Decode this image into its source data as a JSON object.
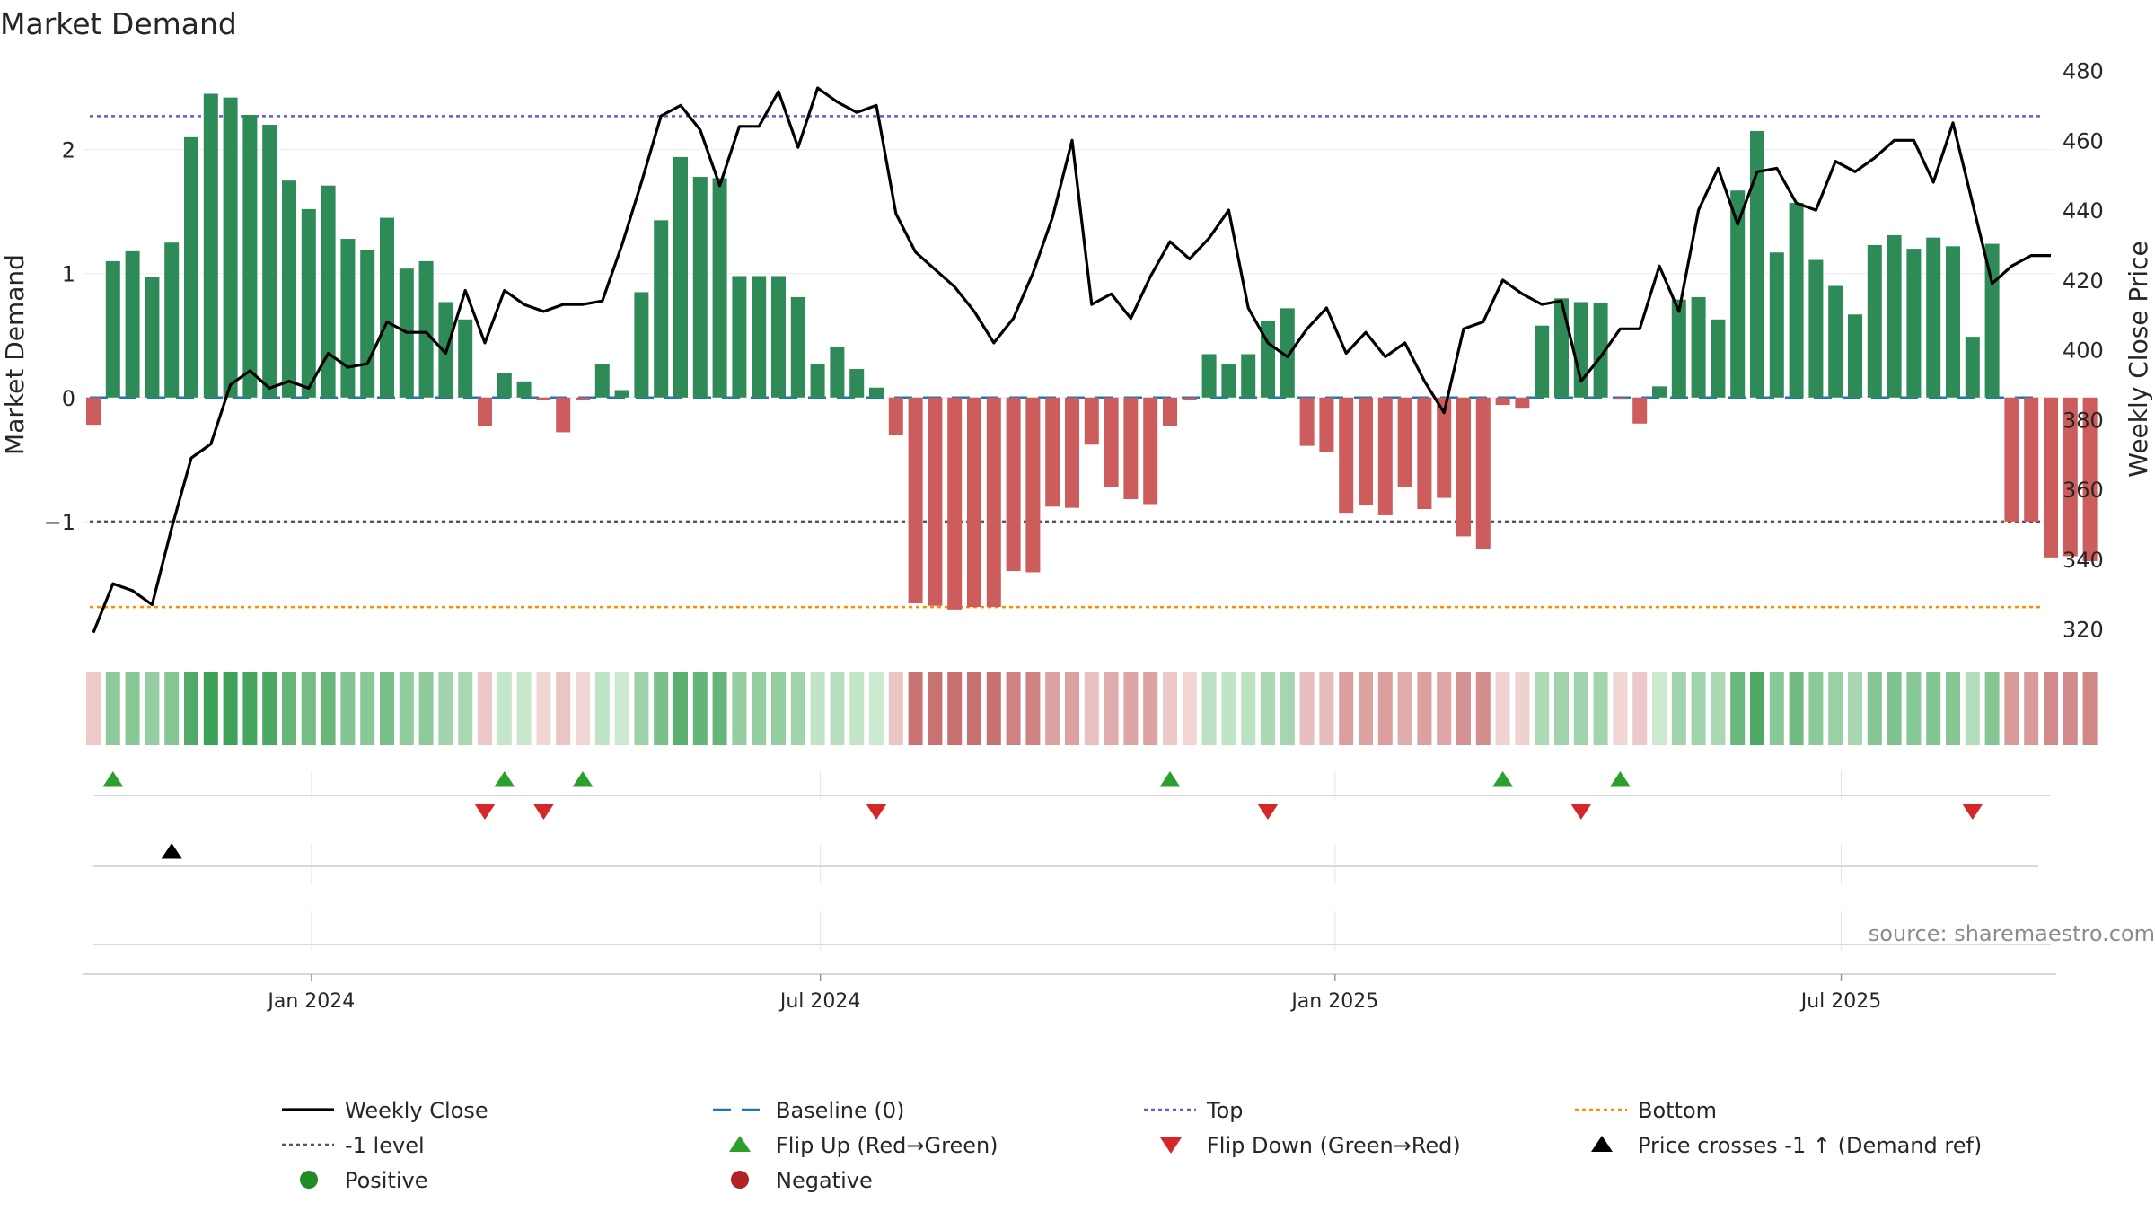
{
  "chart_data": {
    "type": "bar",
    "title": "Market Demand",
    "ylabel_left": "Market Demand",
    "ylabel_right": "Weekly Close Price",
    "source": "source: sharemaestro.com",
    "ylim_left": [
      -1.95,
      2.7
    ],
    "yticks_left": [
      2,
      1,
      0,
      -1
    ],
    "ytick_labels_left": [
      "2",
      "1",
      "0",
      "−1"
    ],
    "ylim_right": [
      317.1,
      482.2
    ],
    "yticks_right": [
      320,
      340,
      360,
      380,
      400,
      420,
      440,
      460,
      480
    ],
    "date_ticks": [
      {
        "label": "Jan 2024",
        "index": 11.14
      },
      {
        "label": "Jul 2024",
        "index": 37.14
      },
      {
        "label": "Jan 2025",
        "index": 63.43
      },
      {
        "label": "Jul 2025",
        "index": 89.29
      }
    ],
    "levels": {
      "top": 2.27,
      "minus_one": -1,
      "bottom": -1.69,
      "baseline": 0
    },
    "demand": [
      -0.22,
      1.1,
      1.18,
      0.97,
      1.25,
      2.1,
      2.45,
      2.42,
      2.28,
      2.2,
      1.75,
      1.52,
      1.71,
      1.28,
      1.19,
      1.45,
      1.04,
      1.1,
      0.77,
      0.63,
      -0.23,
      0.2,
      0.13,
      -0.02,
      -0.28,
      -0.02,
      0.27,
      0.06,
      0.85,
      1.43,
      1.94,
      1.78,
      1.77,
      0.98,
      0.98,
      0.98,
      0.81,
      0.27,
      0.41,
      0.23,
      0.08,
      -0.3,
      -1.66,
      -1.68,
      -1.71,
      -1.69,
      -1.69,
      -1.4,
      -1.41,
      -0.88,
      -0.89,
      -0.38,
      -0.72,
      -0.82,
      -0.86,
      -0.23,
      -0.02,
      0.35,
      0.27,
      0.35,
      0.62,
      0.72,
      -0.39,
      -0.44,
      -0.93,
      -0.87,
      -0.95,
      -0.72,
      -0.9,
      -0.81,
      -1.12,
      -1.22,
      -0.06,
      -0.09,
      0.58,
      0.8,
      0.77,
      0.76,
      -0.01,
      -0.21,
      0.09,
      0.79,
      0.81,
      0.63,
      1.67,
      2.15,
      1.17,
      1.57,
      1.11,
      0.9,
      0.67,
      1.23,
      1.31,
      1.2,
      1.29,
      1.22,
      0.49,
      1.24,
      -1,
      -1,
      -1.29,
      -1.28,
      -1.32
    ],
    "close": [
      319,
      333,
      331,
      327,
      349,
      369,
      373,
      390,
      394,
      389,
      391,
      389,
      399,
      395,
      396,
      408,
      405,
      405,
      399,
      417,
      402,
      417,
      413,
      411,
      413,
      413,
      414,
      430,
      448,
      467,
      470,
      463,
      447,
      464,
      464,
      474,
      458,
      475,
      471,
      468,
      470,
      439,
      428,
      423,
      418,
      411,
      402,
      409,
      422,
      438,
      460,
      413,
      416,
      409,
      421,
      431,
      426,
      432,
      440,
      412,
      402,
      398,
      406,
      412,
      399,
      405,
      398,
      402,
      391,
      382,
      406,
      408,
      420,
      416,
      413,
      414,
      391,
      398,
      406,
      406,
      424,
      411,
      440,
      452,
      436,
      451,
      452,
      442,
      440,
      454,
      451,
      455,
      460,
      460,
      448,
      465,
      442,
      419,
      424,
      427,
      427
    ],
    "flip_up": [
      1,
      21,
      25,
      55,
      72,
      78
    ],
    "flip_down": [
      20,
      23,
      40,
      60,
      76,
      96
    ],
    "price_cross": [
      4
    ],
    "legend": [
      {
        "label": "Weekly Close",
        "symbol": "line-solid",
        "color": "#000000"
      },
      {
        "label": "Baseline (0)",
        "symbol": "line-dash",
        "color": "#1f77b4"
      },
      {
        "label": "Top",
        "symbol": "line-dot",
        "color": "#6a5acd"
      },
      {
        "label": "Bottom",
        "symbol": "line-dot",
        "color": "#ff8c00"
      },
      {
        "label": "-1 level",
        "symbol": "line-dot",
        "color": "#555555"
      },
      {
        "label": "Flip Up (Red→Green)",
        "symbol": "triangle-up",
        "color": "#2ca02c"
      },
      {
        "label": "Flip Down (Green→Red)",
        "symbol": "triangle-down",
        "color": "#d62728"
      },
      {
        "label": "Price crosses -1 ↑ (Demand ref)",
        "symbol": "triangle-up",
        "color": "#000000"
      },
      {
        "label": "Positive",
        "symbol": "circle",
        "color": "#228b22"
      },
      {
        "label": "Negative",
        "symbol": "circle",
        "color": "#b22222"
      }
    ],
    "colors": {
      "positive_bar": "#2e8b57",
      "negative_bar": "#cd5c5c",
      "close_line": "#000000",
      "flip_up": "#2ca02c",
      "flip_down": "#d62728"
    }
  }
}
